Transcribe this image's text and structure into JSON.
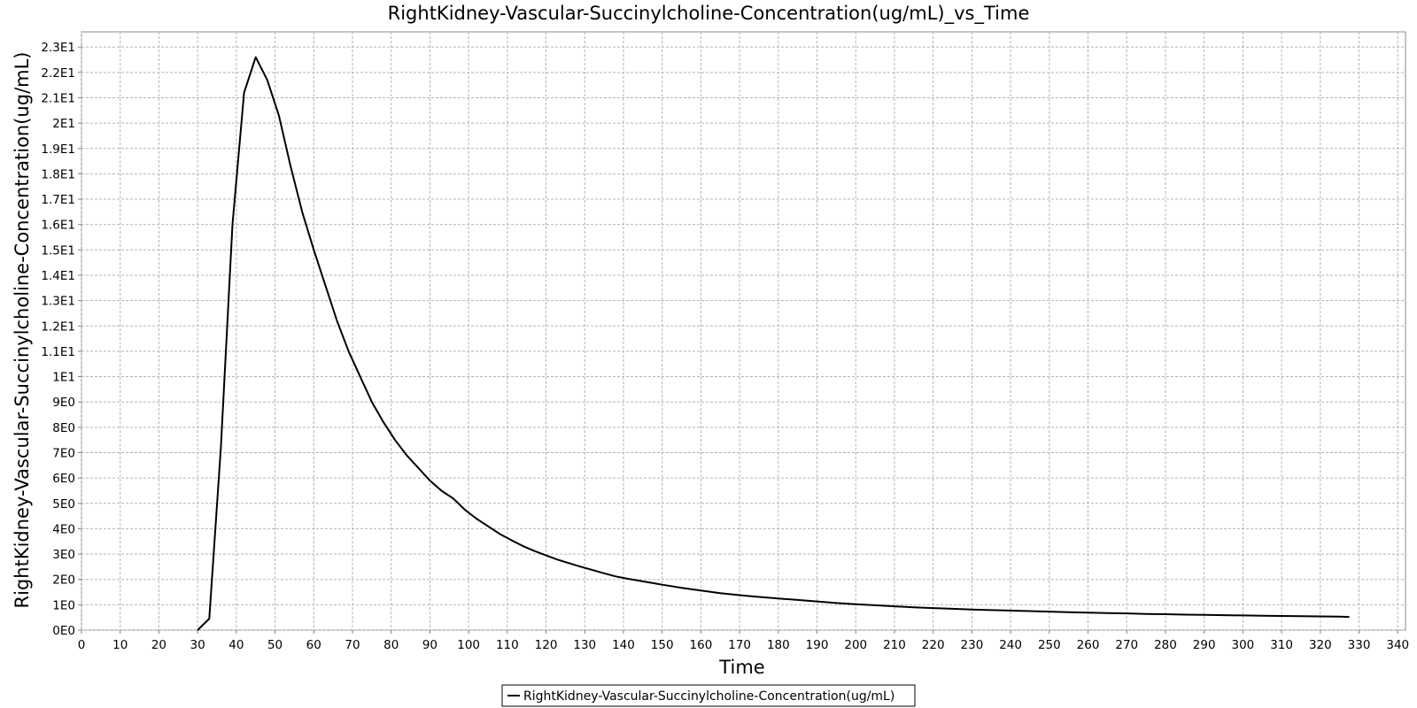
{
  "chart_data": {
    "type": "line",
    "title": "RightKidney-Vascular-Succinylcholine-Concentration(ug/mL)_vs_Time",
    "xlabel": "Time",
    "ylabel": "RightKidney-Vascular-Succinylcholine-Concentration(ug/mL)",
    "xlim": [
      0,
      342
    ],
    "ylim": [
      0,
      23.6
    ],
    "x_ticks": [
      0,
      10,
      20,
      30,
      40,
      50,
      60,
      70,
      80,
      90,
      100,
      110,
      120,
      130,
      140,
      150,
      160,
      170,
      180,
      190,
      200,
      210,
      220,
      230,
      240,
      250,
      260,
      270,
      280,
      290,
      300,
      310,
      320,
      330,
      340
    ],
    "x_tick_labels": [
      "0",
      "10",
      "20",
      "30",
      "40",
      "50",
      "60",
      "70",
      "80",
      "90",
      "100",
      "110",
      "120",
      "130",
      "140",
      "150",
      "160",
      "170",
      "180",
      "190",
      "200",
      "210",
      "220",
      "230",
      "240",
      "250",
      "260",
      "270",
      "280",
      "290",
      "300",
      "310",
      "320",
      "330",
      "340"
    ],
    "y_ticks": [
      0,
      1,
      2,
      3,
      4,
      5,
      6,
      7,
      8,
      9,
      10,
      11,
      12,
      13,
      14,
      15,
      16,
      17,
      18,
      19,
      20,
      21,
      22,
      23
    ],
    "y_tick_labels": [
      "0E0",
      "1E0",
      "2E0",
      "3E0",
      "4E0",
      "5E0",
      "6E0",
      "7E0",
      "8E0",
      "9E0",
      "1E1",
      "1.1E1",
      "1.2E1",
      "1.3E1",
      "1.4E1",
      "1.5E1",
      "1.6E1",
      "1.7E1",
      "1.8E1",
      "1.9E1",
      "2E1",
      "2.1E1",
      "2.2E1",
      "2.3E1"
    ],
    "grid": true,
    "legend_position": "bottom-center",
    "series": [
      {
        "name": "RightKidney-Vascular-Succinylcholine-Concentration(ug/mL)",
        "color": "#000000",
        "x": [
          30,
          33,
          36,
          39,
          42,
          45,
          48,
          51,
          54,
          57,
          60,
          63,
          66,
          69,
          72,
          75,
          78,
          81,
          84,
          87,
          90,
          93,
          96,
          99,
          102,
          105,
          108,
          111,
          114,
          117,
          120,
          123,
          126,
          129,
          132,
          135,
          138,
          141,
          144,
          147,
          150,
          155,
          160,
          165,
          170,
          175,
          180,
          185,
          190,
          195,
          200,
          205,
          210,
          215,
          220,
          225,
          230,
          235,
          240,
          245,
          250,
          255,
          260,
          265,
          270,
          275,
          280,
          285,
          290,
          295,
          300,
          305,
          310,
          315,
          320,
          325,
          327.5
        ],
        "y": [
          0.0,
          0.45,
          7.2,
          16.0,
          21.2,
          22.6,
          21.7,
          20.3,
          18.3,
          16.5,
          15.0,
          13.6,
          12.2,
          11.0,
          10.0,
          9.0,
          8.2,
          7.5,
          6.9,
          6.4,
          5.9,
          5.5,
          5.2,
          4.75,
          4.4,
          4.1,
          3.8,
          3.55,
          3.32,
          3.12,
          2.95,
          2.78,
          2.64,
          2.5,
          2.37,
          2.24,
          2.12,
          2.03,
          1.95,
          1.87,
          1.79,
          1.67,
          1.56,
          1.46,
          1.38,
          1.31,
          1.25,
          1.19,
          1.13,
          1.07,
          1.02,
          0.98,
          0.94,
          0.9,
          0.87,
          0.84,
          0.81,
          0.79,
          0.77,
          0.75,
          0.73,
          0.71,
          0.69,
          0.67,
          0.66,
          0.64,
          0.63,
          0.61,
          0.6,
          0.59,
          0.58,
          0.57,
          0.56,
          0.55,
          0.54,
          0.53,
          0.52
        ]
      }
    ]
  }
}
